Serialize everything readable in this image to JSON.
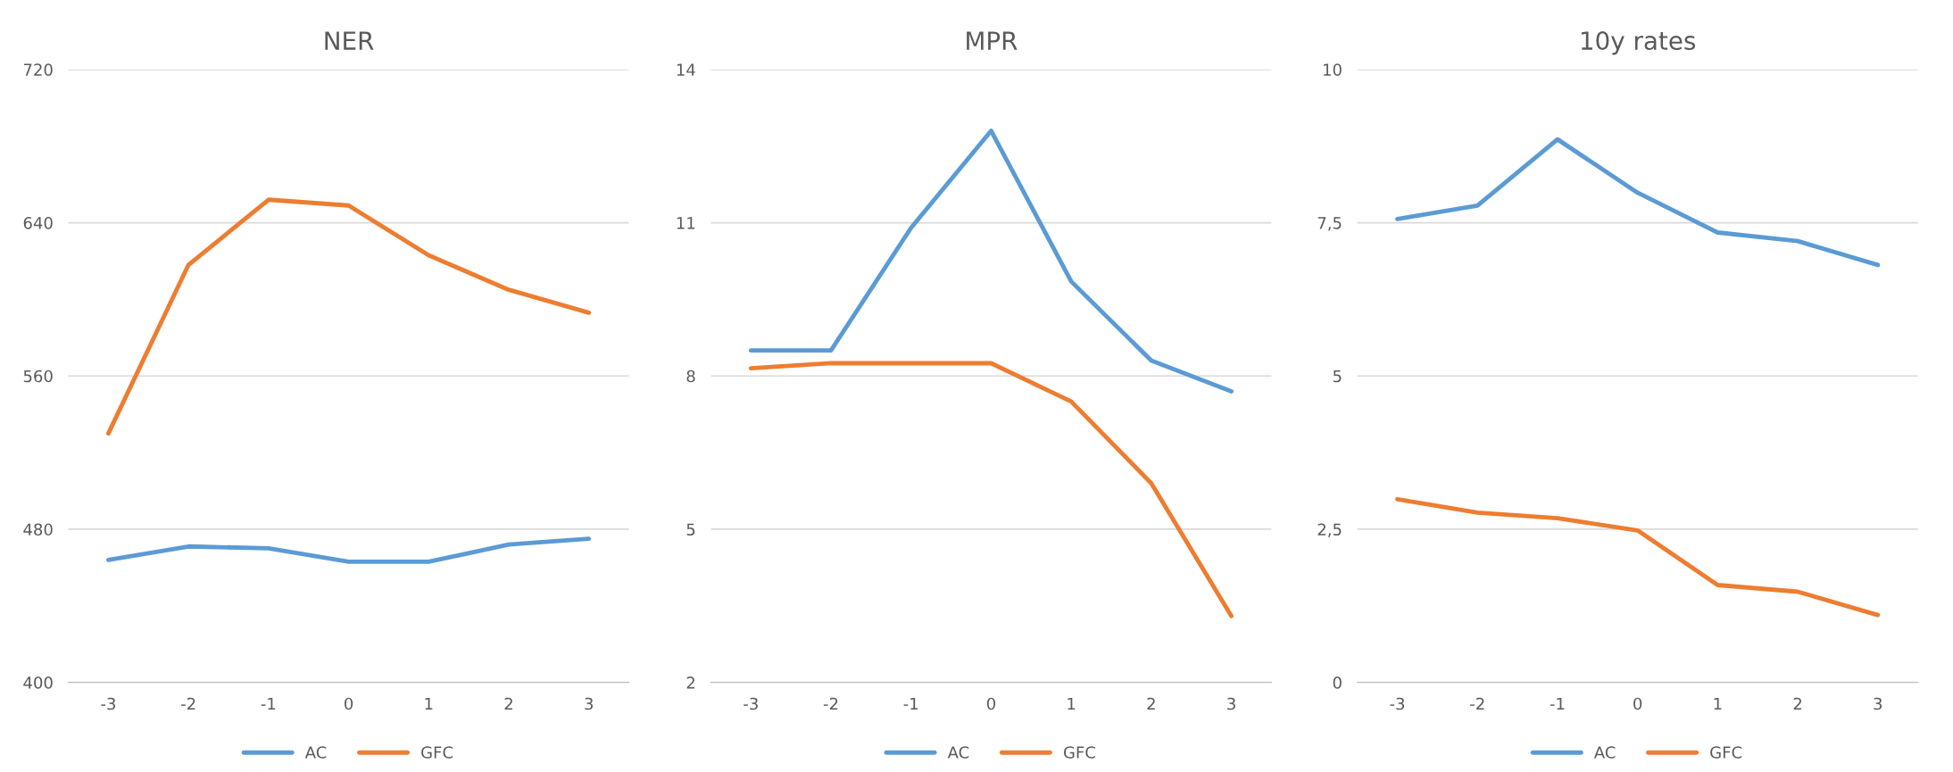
{
  "chart_data": [
    {
      "type": "line",
      "title": "NER",
      "categories": [
        "-3",
        "-2",
        "-1",
        "0",
        "1",
        "2",
        "3"
      ],
      "ylim": [
        400,
        720
      ],
      "yticks": [
        400,
        480,
        560,
        640,
        720
      ],
      "grid": "y",
      "legend": "bottom",
      "series": [
        {
          "name": "AC",
          "color": "#5b9bd5",
          "values": [
            464,
            471,
            470,
            463,
            463,
            472,
            475
          ]
        },
        {
          "name": "GFC",
          "color": "#ed7d31",
          "values": [
            530,
            618,
            652,
            649,
            623,
            605,
            593
          ]
        }
      ]
    },
    {
      "type": "line",
      "title": "MPR",
      "categories": [
        "-3",
        "-2",
        "-1",
        "0",
        "1",
        "2",
        "3"
      ],
      "ylim": [
        2,
        14
      ],
      "yticks": [
        2,
        5,
        8,
        11,
        14
      ],
      "grid": "y",
      "legend": "bottom",
      "series": [
        {
          "name": "AC",
          "color": "#5b9bd5",
          "values": [
            8.5,
            8.5,
            10.9,
            12.8,
            9.85,
            8.3,
            7.7
          ]
        },
        {
          "name": "GFC",
          "color": "#ed7d31",
          "values": [
            8.15,
            8.25,
            8.25,
            8.25,
            7.5,
            5.9,
            3.3
          ]
        }
      ]
    },
    {
      "type": "line",
      "title": "10y rates",
      "categories": [
        "-3",
        "-2",
        "-1",
        "0",
        "1",
        "2",
        "3"
      ],
      "ylim": [
        0,
        10
      ],
      "yticks": [
        0,
        {
          "value": 2.5,
          "label": "2,5"
        },
        5,
        {
          "value": 7.5,
          "label": "7,5"
        },
        10
      ],
      "grid": "y",
      "legend": "bottom",
      "series": [
        {
          "name": "AC",
          "color": "#5b9bd5",
          "values": [
            7.56,
            7.78,
            8.86,
            7.99,
            7.34,
            7.2,
            6.81
          ]
        },
        {
          "name": "GFC",
          "color": "#ed7d31",
          "values": [
            2.99,
            2.77,
            2.68,
            2.48,
            1.59,
            1.48,
            1.1
          ]
        }
      ]
    }
  ]
}
